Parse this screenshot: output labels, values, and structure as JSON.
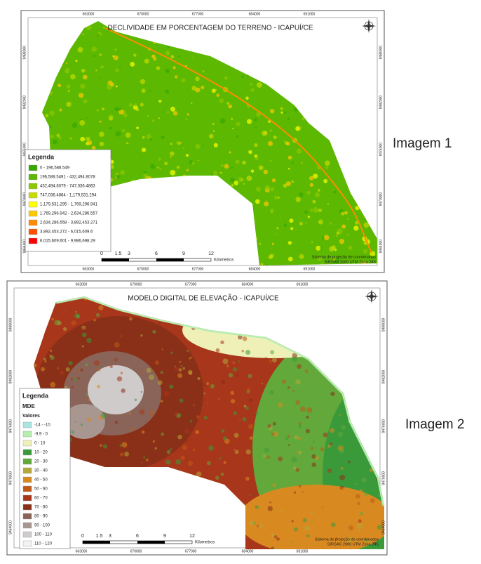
{
  "maps": [
    {
      "title": "DECLIVIDADE EM PORCENTAGEM DO TERRENO - ICAPUÍ/CE",
      "x_ticks_top": [
        "663000",
        "670000",
        "677000",
        "684000",
        "691000"
      ],
      "x_ticks_bottom": [
        "663000",
        "670000",
        "677000",
        "684000",
        "691000"
      ],
      "y_ticks_left": [
        "9488000",
        "9482000",
        "9476000",
        "9470000",
        "9464000"
      ],
      "y_ticks_right": [
        "9488000",
        "9482000",
        "9476000",
        "9470000",
        "9464000"
      ],
      "legend": {
        "title": "Legenda",
        "items": [
          {
            "label": "0 - 196,588.549",
            "color": "#38a800"
          },
          {
            "label": "196,588.5491 - 432,494.8078",
            "color": "#5cb800"
          },
          {
            "label": "432,494.8079 - 747,036.4863",
            "color": "#8cc700"
          },
          {
            "label": "747,036.4864 - 1,179,531.294",
            "color": "#c4dc00"
          },
          {
            "label": "1,179,531.295 - 1,769,296.941",
            "color": "#ffff00"
          },
          {
            "label": "1,769,296.942 - 2,634,286.557",
            "color": "#ffc800"
          },
          {
            "label": "2,634,286.558 - 3,892,453.271",
            "color": "#ff8c00"
          },
          {
            "label": "3,892,453.272 - 6,015,609.6",
            "color": "#ff5000"
          },
          {
            "label": "6,015,609.601 - 9,986,698.29",
            "color": "#ff0000"
          }
        ]
      },
      "scale": {
        "labels": [
          "0",
          "1.5",
          "3",
          "6",
          "9",
          "12"
        ],
        "unit": "Kilometros"
      },
      "projection": [
        "Sistema de projeção de coordenadas",
        "SIRGAS 2000 UTM Zona 24S"
      ],
      "caption": "Imagem 1"
    },
    {
      "title": "MODELO DIGITAL DE ELEVAÇÃO - ICAPUÍ/CE",
      "x_ticks_top": [
        "663000",
        "670000",
        "677000",
        "684000",
        "691000"
      ],
      "x_ticks_bottom": [
        "663000",
        "670000",
        "677000",
        "684000",
        "691000"
      ],
      "y_ticks_left": [
        "9488000",
        "9482000",
        "9476000",
        "9470000",
        "9464000"
      ],
      "y_ticks_right": [
        "9488000",
        "9482000",
        "9476000",
        "9470000",
        "9464000"
      ],
      "legend": {
        "title": "Legenda",
        "subtitle": "MDE",
        "group": "Valores",
        "items": [
          {
            "label": "-14 - -10",
            "color": "#a8e6e0"
          },
          {
            "label": "-9.9 - 0",
            "color": "#b6eeb0"
          },
          {
            "label": "0 - 10",
            "color": "#eef0b8"
          },
          {
            "label": "10 - 20",
            "color": "#3a9a3a"
          },
          {
            "label": "20 - 30",
            "color": "#62a83a"
          },
          {
            "label": "30 - 40",
            "color": "#b5a83a"
          },
          {
            "label": "40 - 50",
            "color": "#d88a20"
          },
          {
            "label": "50 - 60",
            "color": "#c05a18"
          },
          {
            "label": "60 - 70",
            "color": "#a8361a"
          },
          {
            "label": "70 - 80",
            "color": "#8a3018"
          },
          {
            "label": "80 - 90",
            "color": "#8a6458"
          },
          {
            "label": "90 - 100",
            "color": "#a89690"
          },
          {
            "label": "100 - 110",
            "color": "#cfcbcb"
          },
          {
            "label": "110 - 120",
            "color": "#f2f2f2"
          }
        ]
      },
      "scale": {
        "labels": [
          "0",
          "1.5",
          "3",
          "6",
          "9",
          "12"
        ],
        "unit": "Kilometros"
      },
      "projection": [
        "Sistema de projeção de coordenadas",
        "SIRGAS 2000 UTM Zona 24S"
      ],
      "caption": "Imagem 2"
    }
  ]
}
